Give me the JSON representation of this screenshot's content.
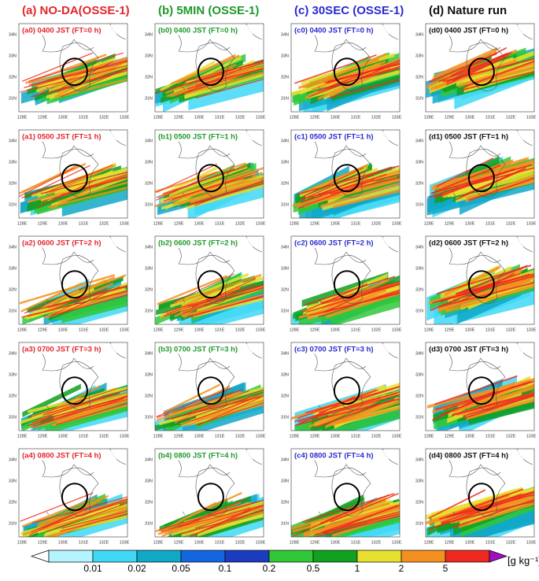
{
  "columns": [
    {
      "title": "(a) NO-DA(OSSE-1)",
      "color": "#e3262d",
      "panels": [
        "(a0) 0400 JST (FT=0 h)",
        "(a1) 0500 JST (FT=1 h)",
        "(a2) 0600 JST (FT=2 h)",
        "(a3) 0700 JST (FT=3 h)",
        "(a4) 0800 JST (FT=4 h)"
      ]
    },
    {
      "title": "(b) 5MIN (OSSE-1)",
      "color": "#1f9a2a",
      "panels": [
        "(b0) 0400 JST (FT=0 h)",
        "(b1) 0500 JST (FT=1 h)",
        "(b2) 0600 JST (FT=2 h)",
        "(b3) 0700 JST (FT=3 h)",
        "(b4) 0800 JST (FT=4 h)"
      ]
    },
    {
      "title": "(c) 30SEC (OSSE-1)",
      "color": "#2a2ad0",
      "panels": [
        "(c0) 0400 JST (FT=0 h)",
        "(c1) 0500 JST (FT=1 h)",
        "(c2) 0600 JST (FT=2 h)",
        "(c3) 0700 JST (FT=3 h)",
        "(c4) 0800 JST (FT=4 h)"
      ]
    },
    {
      "title": "(d) Nature run",
      "color": "#111111",
      "panels": [
        "(d0) 0400 JST (FT=0 h)",
        "(d1) 0500 JST (FT=1 h)",
        "(d2) 0600 JST (FT=2 h)",
        "(d3) 0700 JST (FT=3 h)",
        "(d4) 0800 JST (FT=4 h)"
      ]
    }
  ],
  "axes": {
    "lat": [
      "34N",
      "33N",
      "32N",
      "31N"
    ],
    "lon": [
      "128E",
      "129E",
      "130E",
      "131E",
      "132E",
      "133E"
    ]
  },
  "colorbar": {
    "levels": [
      0.01,
      0.02,
      0.05,
      0.1,
      0.2,
      0.5,
      1,
      2,
      5
    ],
    "unit": "[g kg⁻¹]",
    "colors": [
      "#ffffff",
      "#b4f4ff",
      "#40d8f4",
      "#12a8c8",
      "#1466e0",
      "#1c3cc0",
      "#30c838",
      "#12a020",
      "#e8e030",
      "#f49020",
      "#ee2a20",
      "#a010c0"
    ]
  }
}
